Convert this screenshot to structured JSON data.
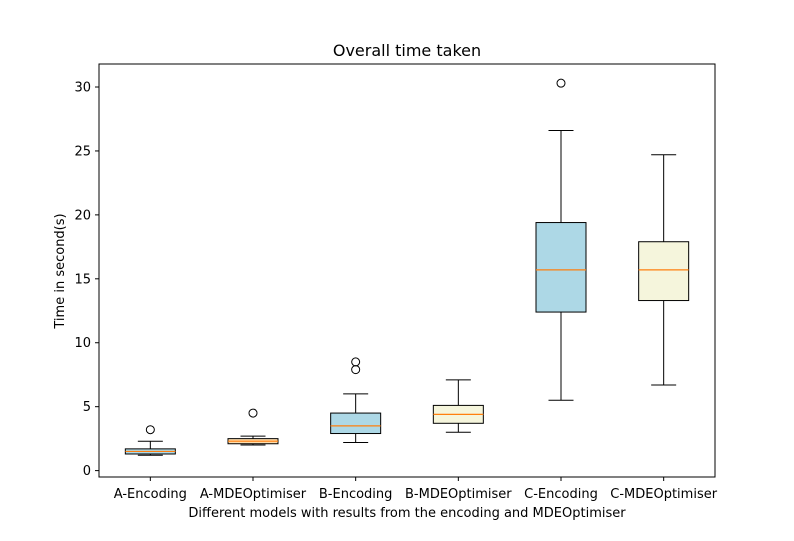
{
  "chart_data": {
    "type": "box",
    "title": "Overall time taken",
    "xlabel": "Different models with results from the encoding and MDEOptimiser",
    "ylabel": "Time in second(s)",
    "ylim": [
      -0.5,
      31.8
    ],
    "yticks": [
      0,
      5,
      10,
      15,
      20,
      25,
      30
    ],
    "grid": false,
    "legend": "none",
    "median_color": "#ff7f0e",
    "series": [
      {
        "category": "A-Encoding",
        "fill": "#add8e6",
        "whisker_low": 1.2,
        "q1": 1.3,
        "median": 1.5,
        "q3": 1.7,
        "whisker_high": 2.3,
        "outliers": [
          3.2
        ]
      },
      {
        "category": "A-MDEOptimiser",
        "fill": "#ffdead",
        "whisker_low": 2.0,
        "q1": 2.1,
        "median": 2.3,
        "q3": 2.5,
        "whisker_high": 2.7,
        "outliers": [
          4.5
        ]
      },
      {
        "category": "B-Encoding",
        "fill": "#add8e6",
        "whisker_low": 2.2,
        "q1": 2.9,
        "median": 3.5,
        "q3": 4.5,
        "whisker_high": 6.0,
        "outliers": [
          7.9,
          8.5
        ]
      },
      {
        "category": "B-MDEOptimiser",
        "fill": "#f5f5dc",
        "whisker_low": 3.0,
        "q1": 3.7,
        "median": 4.4,
        "q3": 5.1,
        "whisker_high": 7.1,
        "outliers": []
      },
      {
        "category": "C-Encoding",
        "fill": "#add8e6",
        "whisker_low": 5.5,
        "q1": 12.4,
        "median": 15.7,
        "q3": 19.4,
        "whisker_high": 26.6,
        "outliers": [
          30.3
        ]
      },
      {
        "category": "C-MDEOptimiser",
        "fill": "#f5f5dc",
        "whisker_low": 6.7,
        "q1": 13.3,
        "median": 15.7,
        "q3": 17.9,
        "whisker_high": 24.7,
        "outliers": []
      }
    ]
  }
}
